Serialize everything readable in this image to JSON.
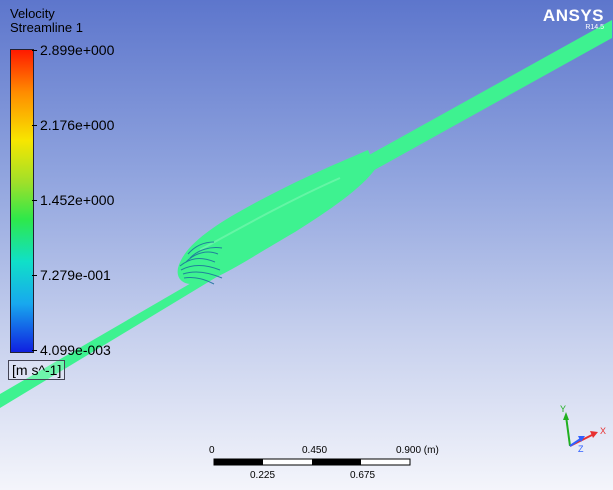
{
  "legend": {
    "title": "Velocity",
    "subtitle": "Streamline 1",
    "ticks": [
      "2.899e+000",
      "2.176e+000",
      "1.452e+000",
      "7.279e-001",
      "4.099e-003"
    ],
    "units": "[m s^-1]",
    "colors": {
      "max": "#ff1a00",
      "high": "#f7e600",
      "mid": "#2ee84a",
      "low": "#18a8ee",
      "min": "#1020e0"
    }
  },
  "brand": {
    "name": "ANSYS",
    "version": "R14.5"
  },
  "streamline": {
    "color": "#3ef290",
    "dark_color": "#1a6f9e"
  },
  "scale_bar": {
    "top_labels": [
      "0",
      "0.450",
      "0.900 (m)"
    ],
    "bottom_labels": [
      "0.225",
      "0.675"
    ]
  },
  "axes": {
    "x_label": "X",
    "y_label": "Y",
    "z_label": "Z",
    "x_color": "#e83030",
    "y_color": "#20b020",
    "z_color": "#3060ff"
  }
}
